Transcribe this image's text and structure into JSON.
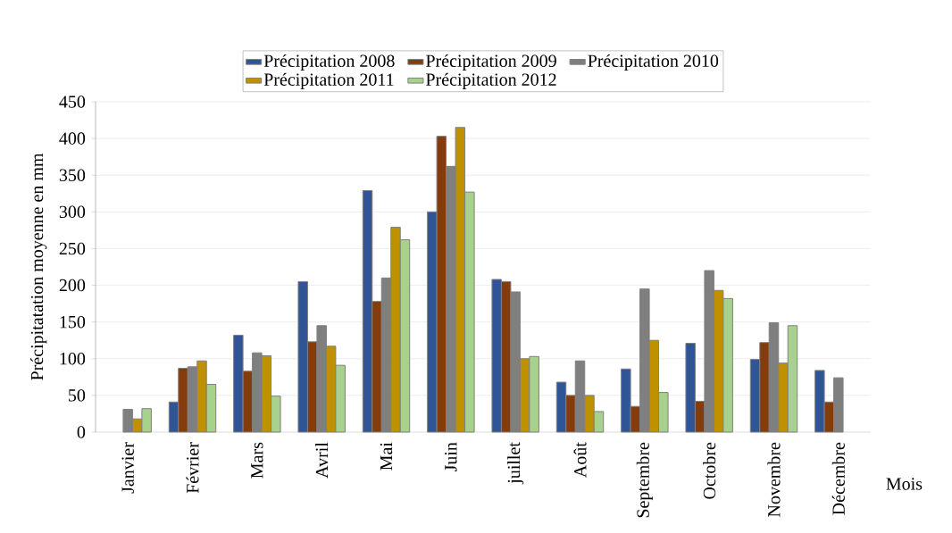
{
  "chart_data": {
    "type": "bar",
    "ylabel": "Précipitatation moyenne en mm",
    "xlabel": "Mois",
    "categories": [
      "Janvier",
      "Février",
      "Mars",
      "Avril",
      "Mai",
      "Juin",
      "juillet",
      "Août",
      "Septembre",
      "Octobre",
      "Novembre",
      "Décembre"
    ],
    "series": [
      {
        "name": "Précipitation  2008",
        "color": "#2f5597",
        "values": [
          null,
          41,
          132,
          205,
          329,
          300,
          208,
          68,
          86,
          121,
          99,
          84
        ]
      },
      {
        "name": "Précipitation  2009",
        "color": "#843c0c",
        "values": [
          null,
          87,
          83,
          123,
          178,
          403,
          205,
          50,
          35,
          42,
          122,
          41
        ]
      },
      {
        "name": "Précipitation  2010",
        "color": "#7f7f7f",
        "values": [
          31,
          89,
          108,
          145,
          210,
          362,
          191,
          97,
          195,
          220,
          149,
          74
        ]
      },
      {
        "name": "Précipitation  2011",
        "color": "#bf9000",
        "values": [
          18,
          97,
          104,
          117,
          279,
          415,
          100,
          50,
          125,
          193,
          94,
          null
        ]
      },
      {
        "name": "Précipitation  2012",
        "color": "#a9d18e",
        "values": [
          32,
          65,
          49,
          91,
          262,
          327,
          103,
          28,
          54,
          182,
          145,
          null
        ]
      }
    ],
    "ylim": [
      0,
      450
    ],
    "yticks": [
      0,
      50,
      100,
      150,
      200,
      250,
      300,
      350,
      400,
      450
    ],
    "grid": "y",
    "legend": "top"
  }
}
